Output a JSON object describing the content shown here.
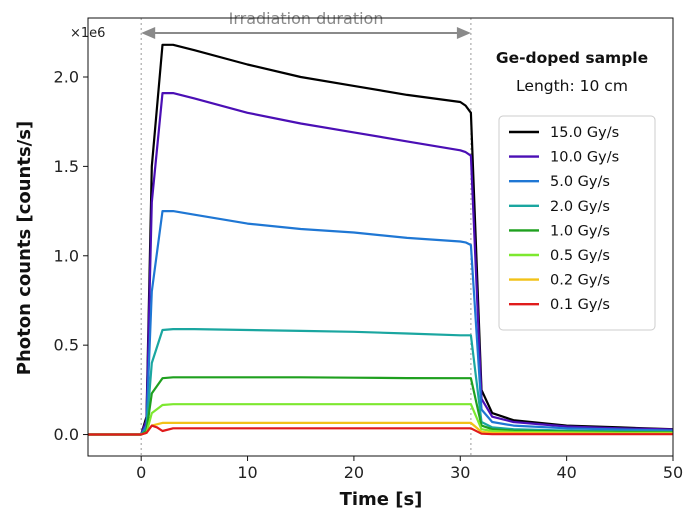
{
  "chart_data": {
    "type": "line",
    "title": "Ge-doped sample",
    "subtitle": "Length: 10 cm",
    "xlabel": "Time [s]",
    "ylabel": "Photon counts [counts/s]",
    "y_multiplier": "×1e6",
    "xlim": [
      -5,
      50
    ],
    "ylim": [
      -0.12,
      2.33
    ],
    "xticks": [
      0,
      10,
      20,
      30,
      40,
      50
    ],
    "yticks": [
      0.0,
      0.5,
      1.0,
      1.5,
      2.0
    ],
    "xtick_labels": [
      "0",
      "10",
      "20",
      "30",
      "40",
      "50"
    ],
    "ytick_labels": [
      "0.0",
      "0.5",
      "1.0",
      "1.5",
      "2.0"
    ],
    "grid": false,
    "legend_position": "right",
    "annotation": {
      "text": "Irradiation duration",
      "x_start": 0,
      "x_end": 31,
      "color": "#8a8a8a"
    },
    "series": [
      {
        "name": "15.0 Gy/s",
        "color": "#000000",
        "x": [
          -5,
          0,
          0.5,
          1,
          2,
          3,
          5,
          10,
          15,
          20,
          25,
          30,
          30.5,
          31,
          32,
          33,
          35,
          40,
          45,
          50
        ],
        "y": [
          0,
          0,
          0.1,
          1.5,
          2.18,
          2.18,
          2.15,
          2.07,
          2.0,
          1.95,
          1.9,
          1.86,
          1.84,
          1.8,
          0.25,
          0.12,
          0.08,
          0.05,
          0.04,
          0.03
        ]
      },
      {
        "name": "10.0 Gy/s",
        "color": "#4b0fb5",
        "x": [
          -5,
          0,
          0.5,
          1,
          2,
          3,
          5,
          10,
          15,
          20,
          25,
          30,
          30.5,
          31,
          32,
          33,
          35,
          40,
          45,
          50
        ],
        "y": [
          0,
          0,
          0.08,
          1.3,
          1.91,
          1.91,
          1.88,
          1.8,
          1.74,
          1.69,
          1.64,
          1.59,
          1.58,
          1.56,
          0.2,
          0.1,
          0.07,
          0.045,
          0.035,
          0.028
        ]
      },
      {
        "name": "5.0 Gy/s",
        "color": "#1f77d4",
        "x": [
          -5,
          0,
          0.5,
          1,
          2,
          3,
          5,
          10,
          15,
          20,
          25,
          30,
          30.5,
          31,
          32,
          33,
          35,
          40,
          45,
          50
        ],
        "y": [
          0,
          0,
          0.05,
          0.8,
          1.25,
          1.25,
          1.23,
          1.18,
          1.15,
          1.13,
          1.1,
          1.08,
          1.075,
          1.06,
          0.14,
          0.07,
          0.05,
          0.035,
          0.028,
          0.022
        ]
      },
      {
        "name": "2.0 Gy/s",
        "color": "#1aa6a0",
        "x": [
          -5,
          0,
          0.5,
          1,
          2,
          3,
          5,
          10,
          15,
          20,
          25,
          30,
          30.5,
          31,
          32,
          33,
          35,
          40,
          45,
          50
        ],
        "y": [
          0,
          0,
          0.03,
          0.4,
          0.585,
          0.59,
          0.59,
          0.585,
          0.58,
          0.575,
          0.565,
          0.555,
          0.555,
          0.555,
          0.07,
          0.04,
          0.03,
          0.022,
          0.018,
          0.015
        ]
      },
      {
        "name": "1.0 Gy/s",
        "color": "#1fa01f",
        "x": [
          -5,
          0,
          0.5,
          1,
          2,
          3,
          5,
          10,
          15,
          20,
          25,
          30,
          30.5,
          31,
          32,
          33,
          35,
          40,
          45,
          50
        ],
        "y": [
          0,
          0,
          0.02,
          0.23,
          0.315,
          0.32,
          0.32,
          0.32,
          0.32,
          0.318,
          0.316,
          0.315,
          0.315,
          0.315,
          0.05,
          0.03,
          0.022,
          0.017,
          0.014,
          0.012
        ]
      },
      {
        "name": "0.5 Gy/s",
        "color": "#7de82f",
        "x": [
          -5,
          0,
          0.5,
          1,
          2,
          3,
          5,
          10,
          15,
          20,
          25,
          30,
          30.5,
          31,
          32,
          33,
          35,
          40,
          45,
          50
        ],
        "y": [
          0,
          0,
          0.01,
          0.12,
          0.165,
          0.17,
          0.17,
          0.17,
          0.17,
          0.17,
          0.17,
          0.17,
          0.17,
          0.17,
          0.03,
          0.02,
          0.015,
          0.012,
          0.01,
          0.009
        ]
      },
      {
        "name": "0.2 Gy/s",
        "color": "#f2c218",
        "x": [
          -5,
          0,
          0.5,
          1,
          2,
          3,
          5,
          10,
          15,
          20,
          25,
          30,
          30.5,
          31,
          32,
          33,
          35,
          40,
          45,
          50
        ],
        "y": [
          0,
          0,
          0.01,
          0.05,
          0.065,
          0.065,
          0.065,
          0.065,
          0.065,
          0.065,
          0.065,
          0.065,
          0.065,
          0.065,
          0.015,
          0.01,
          0.008,
          0.006,
          0.005,
          0.005
        ]
      },
      {
        "name": "0.1 Gy/s",
        "color": "#e01b1b",
        "x": [
          -5,
          0,
          0.5,
          1,
          1.5,
          2,
          3,
          5,
          10,
          15,
          20,
          25,
          30,
          30.5,
          31,
          32,
          33,
          35,
          40,
          45,
          50
        ],
        "y": [
          0,
          0,
          0.01,
          0.05,
          0.04,
          0.02,
          0.035,
          0.035,
          0.035,
          0.035,
          0.035,
          0.035,
          0.035,
          0.035,
          0.035,
          0.005,
          0.002,
          0.002,
          0.002,
          0.002,
          0.002
        ]
      }
    ]
  }
}
